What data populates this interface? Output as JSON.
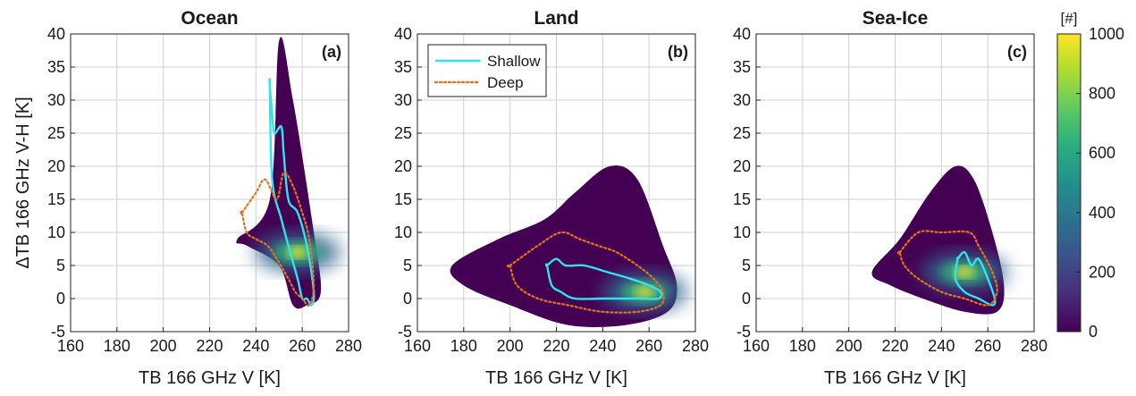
{
  "figure": {
    "panels": [
      {
        "title": "Ocean",
        "tag": "(a)",
        "xlabel": "TB 166 GHz V [K]",
        "ylabel": "ΔTB 166 GHz V-H [K]"
      },
      {
        "title": "Land",
        "tag": "(b)",
        "xlabel": "TB 166 GHz V [K]",
        "ylabel": ""
      },
      {
        "title": "Sea-Ice",
        "tag": "(c)",
        "xlabel": "TB 166 GHz V [K]",
        "ylabel": ""
      }
    ],
    "colorbar": {
      "title": "[#]",
      "ticks": [
        "0",
        "200",
        "400",
        "600",
        "800",
        "1000"
      ],
      "colormap": "viridis"
    },
    "legend": {
      "items": [
        "Shallow",
        "Deep"
      ]
    },
    "colors": {
      "shallow": "#2fe3ef",
      "deep": "#e8721c",
      "low": "#440154",
      "high": "#fde725",
      "grid": "#d0d0d0"
    }
  },
  "chart_data": [
    {
      "type": "heatmap",
      "title": "Ocean",
      "xlabel": "TB 166 GHz V [K]",
      "ylabel": "ΔTB 166 GHz V-H [K]",
      "xlim": [
        160,
        280
      ],
      "ylim": [
        -5,
        40
      ],
      "xticks": [
        160,
        180,
        200,
        220,
        240,
        260,
        280
      ],
      "yticks": [
        -5,
        0,
        5,
        10,
        15,
        20,
        25,
        30,
        35,
        40
      ],
      "grid": true,
      "colorbar_range": [
        0,
        1000
      ],
      "density_peak": {
        "x": 258,
        "y": 7
      },
      "density_extent": [
        [
          232,
          9
        ],
        [
          246,
          15
        ],
        [
          250,
          39
        ],
        [
          256,
          30
        ],
        [
          265,
          10
        ],
        [
          268,
          1
        ],
        [
          262,
          -1
        ],
        [
          256,
          -1
        ],
        [
          250,
          5
        ],
        [
          236,
          8
        ]
      ],
      "series": [
        {
          "name": "Shallow",
          "style": "solid",
          "x": [
            246,
            247,
            248,
            251,
            252,
            254,
            258,
            262,
            265,
            264,
            262,
            260,
            258,
            254,
            251,
            247,
            246
          ],
          "y": [
            32,
            28,
            25,
            26,
            22,
            15,
            13,
            8,
            1,
            -1,
            0,
            0,
            3,
            8,
            12,
            18,
            32
          ]
        },
        {
          "name": "Deep",
          "style": "dotted",
          "x": [
            234,
            240,
            244,
            249,
            252,
            256,
            260,
            263,
            265,
            263,
            260,
            257,
            254,
            249,
            245,
            240,
            236,
            234
          ],
          "y": [
            13,
            16,
            18,
            15,
            19,
            17,
            13,
            9,
            2,
            -1,
            0,
            1,
            3,
            6,
            8,
            9,
            10,
            13
          ]
        }
      ]
    },
    {
      "type": "heatmap",
      "title": "Land",
      "xlabel": "TB 166 GHz V [K]",
      "ylabel": "",
      "xlim": [
        160,
        280
      ],
      "ylim": [
        -5,
        40
      ],
      "xticks": [
        160,
        180,
        200,
        220,
        240,
        260,
        280
      ],
      "yticks": [
        -5,
        0,
        5,
        10,
        15,
        20,
        25,
        30,
        35,
        40
      ],
      "grid": true,
      "legend": "top-left",
      "colorbar_range": [
        0,
        1000
      ],
      "density_peak": {
        "x": 258,
        "y": 1
      },
      "density_extent": [
        [
          175,
          5
        ],
        [
          195,
          9
        ],
        [
          215,
          12
        ],
        [
          228,
          16
        ],
        [
          243,
          20
        ],
        [
          255,
          18
        ],
        [
          266,
          8
        ],
        [
          272,
          2
        ],
        [
          268,
          -2
        ],
        [
          250,
          -4
        ],
        [
          225,
          -4
        ],
        [
          200,
          -1
        ],
        [
          180,
          2
        ]
      ],
      "series": [
        {
          "name": "Shallow",
          "style": "solid",
          "x": [
            216,
            220,
            224,
            232,
            242,
            252,
            260,
            265,
            264,
            255,
            240,
            228,
            222,
            218,
            216
          ],
          "y": [
            5,
            6,
            5,
            5,
            4,
            3,
            2,
            1,
            0,
            0,
            0,
            0,
            1,
            2,
            5
          ]
        },
        {
          "name": "Deep",
          "style": "dotted",
          "x": [
            200,
            212,
            222,
            230,
            238,
            246,
            255,
            262,
            266,
            265,
            255,
            240,
            225,
            212,
            203,
            200
          ],
          "y": [
            5,
            8,
            10,
            9,
            8,
            7,
            5,
            3,
            1,
            -1,
            -2,
            -2,
            -1,
            0,
            2,
            5
          ]
        }
      ]
    },
    {
      "type": "heatmap",
      "title": "Sea-Ice",
      "xlabel": "TB 166 GHz V [K]",
      "ylabel": "",
      "xlim": [
        160,
        280
      ],
      "ylim": [
        -5,
        40
      ],
      "xticks": [
        160,
        180,
        200,
        220,
        240,
        260,
        280
      ],
      "yticks": [
        -5,
        0,
        5,
        10,
        15,
        20,
        25,
        30,
        35,
        40
      ],
      "grid": true,
      "colorbar_range": [
        0,
        1000
      ],
      "density_peak": {
        "x": 250,
        "y": 4
      },
      "density_extent": [
        [
          210,
          4
        ],
        [
          222,
          9
        ],
        [
          235,
          16
        ],
        [
          246,
          20
        ],
        [
          254,
          18
        ],
        [
          262,
          10
        ],
        [
          267,
          2
        ],
        [
          264,
          -2
        ],
        [
          250,
          -2
        ],
        [
          232,
          0
        ],
        [
          218,
          2
        ]
      ],
      "series": [
        {
          "name": "Shallow",
          "style": "solid",
          "x": [
            247,
            250,
            253,
            256,
            260,
            263,
            262,
            256,
            250,
            246,
            247
          ],
          "y": [
            6,
            7,
            5,
            6,
            3,
            0,
            -1,
            0,
            1,
            3,
            6
          ]
        },
        {
          "name": "Deep",
          "style": "dotted",
          "x": [
            222,
            230,
            240,
            252,
            256,
            262,
            264,
            260,
            250,
            240,
            230,
            224,
            222
          ],
          "y": [
            7,
            10,
            10,
            10,
            8,
            4,
            1,
            -1,
            0,
            1,
            3,
            5,
            7
          ]
        }
      ]
    }
  ]
}
